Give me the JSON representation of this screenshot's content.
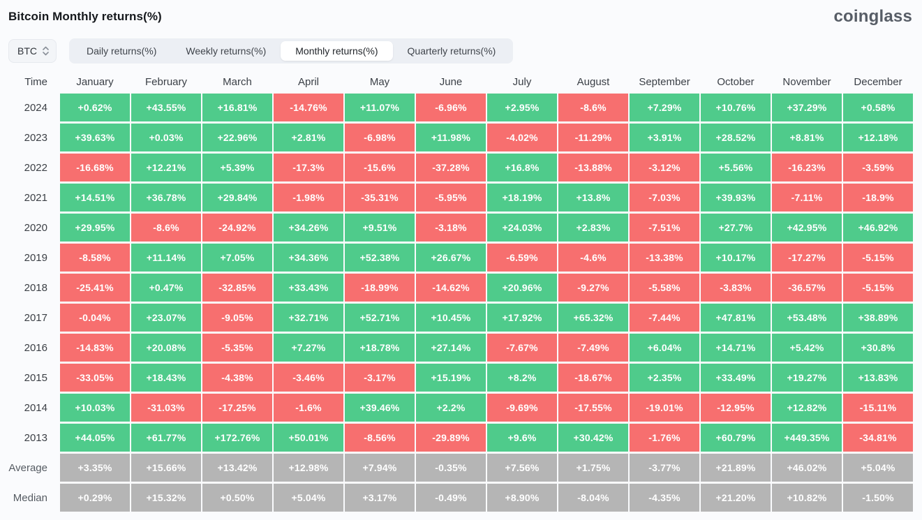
{
  "header": {
    "title": "Bitcoin Monthly returns(%)",
    "logo": "coinglass"
  },
  "controls": {
    "coin": "BTC",
    "tabs": [
      {
        "label": "Daily returns(%)",
        "active": false
      },
      {
        "label": "Weekly returns(%)",
        "active": false
      },
      {
        "label": "Monthly returns(%)",
        "active": true
      },
      {
        "label": "Quarterly returns(%)",
        "active": false
      }
    ]
  },
  "colors": {
    "positive": "#4FCB8B",
    "negative": "#F76F6F",
    "summary": "#B5B5B5"
  },
  "chart_data": {
    "type": "table",
    "title": "Bitcoin Monthly returns(%)",
    "time_header": "Time",
    "columns": [
      "January",
      "February",
      "March",
      "April",
      "May",
      "June",
      "July",
      "August",
      "September",
      "October",
      "November",
      "December"
    ],
    "rows": [
      {
        "label": "2024",
        "kind": "year",
        "values": [
          "+0.62%",
          "+43.55%",
          "+16.81%",
          "-14.76%",
          "+11.07%",
          "-6.96%",
          "+2.95%",
          "-8.6%",
          "+7.29%",
          "+10.76%",
          "+37.29%",
          "+0.58%"
        ]
      },
      {
        "label": "2023",
        "kind": "year",
        "values": [
          "+39.63%",
          "+0.03%",
          "+22.96%",
          "+2.81%",
          "-6.98%",
          "+11.98%",
          "-4.02%",
          "-11.29%",
          "+3.91%",
          "+28.52%",
          "+8.81%",
          "+12.18%"
        ]
      },
      {
        "label": "2022",
        "kind": "year",
        "values": [
          "-16.68%",
          "+12.21%",
          "+5.39%",
          "-17.3%",
          "-15.6%",
          "-37.28%",
          "+16.8%",
          "-13.88%",
          "-3.12%",
          "+5.56%",
          "-16.23%",
          "-3.59%"
        ]
      },
      {
        "label": "2021",
        "kind": "year",
        "values": [
          "+14.51%",
          "+36.78%",
          "+29.84%",
          "-1.98%",
          "-35.31%",
          "-5.95%",
          "+18.19%",
          "+13.8%",
          "-7.03%",
          "+39.93%",
          "-7.11%",
          "-18.9%"
        ]
      },
      {
        "label": "2020",
        "kind": "year",
        "values": [
          "+29.95%",
          "-8.6%",
          "-24.92%",
          "+34.26%",
          "+9.51%",
          "-3.18%",
          "+24.03%",
          "+2.83%",
          "-7.51%",
          "+27.7%",
          "+42.95%",
          "+46.92%"
        ]
      },
      {
        "label": "2019",
        "kind": "year",
        "values": [
          "-8.58%",
          "+11.14%",
          "+7.05%",
          "+34.36%",
          "+52.38%",
          "+26.67%",
          "-6.59%",
          "-4.6%",
          "-13.38%",
          "+10.17%",
          "-17.27%",
          "-5.15%"
        ]
      },
      {
        "label": "2018",
        "kind": "year",
        "values": [
          "-25.41%",
          "+0.47%",
          "-32.85%",
          "+33.43%",
          "-18.99%",
          "-14.62%",
          "+20.96%",
          "-9.27%",
          "-5.58%",
          "-3.83%",
          "-36.57%",
          "-5.15%"
        ]
      },
      {
        "label": "2017",
        "kind": "year",
        "values": [
          "-0.04%",
          "+23.07%",
          "-9.05%",
          "+32.71%",
          "+52.71%",
          "+10.45%",
          "+17.92%",
          "+65.32%",
          "-7.44%",
          "+47.81%",
          "+53.48%",
          "+38.89%"
        ]
      },
      {
        "label": "2016",
        "kind": "year",
        "values": [
          "-14.83%",
          "+20.08%",
          "-5.35%",
          "+7.27%",
          "+18.78%",
          "+27.14%",
          "-7.67%",
          "-7.49%",
          "+6.04%",
          "+14.71%",
          "+5.42%",
          "+30.8%"
        ]
      },
      {
        "label": "2015",
        "kind": "year",
        "values": [
          "-33.05%",
          "+18.43%",
          "-4.38%",
          "-3.46%",
          "-3.17%",
          "+15.19%",
          "+8.2%",
          "-18.67%",
          "+2.35%",
          "+33.49%",
          "+19.27%",
          "+13.83%"
        ]
      },
      {
        "label": "2014",
        "kind": "year",
        "values": [
          "+10.03%",
          "-31.03%",
          "-17.25%",
          "-1.6%",
          "+39.46%",
          "+2.2%",
          "-9.69%",
          "-17.55%",
          "-19.01%",
          "-12.95%",
          "+12.82%",
          "-15.11%"
        ]
      },
      {
        "label": "2013",
        "kind": "year",
        "values": [
          "+44.05%",
          "+61.77%",
          "+172.76%",
          "+50.01%",
          "-8.56%",
          "-29.89%",
          "+9.6%",
          "+30.42%",
          "-1.76%",
          "+60.79%",
          "+449.35%",
          "-34.81%"
        ]
      },
      {
        "label": "Average",
        "kind": "summary",
        "values": [
          "+3.35%",
          "+15.66%",
          "+13.42%",
          "+12.98%",
          "+7.94%",
          "-0.35%",
          "+7.56%",
          "+1.75%",
          "-3.77%",
          "+21.89%",
          "+46.02%",
          "+5.04%"
        ]
      },
      {
        "label": "Median",
        "kind": "summary",
        "values": [
          "+0.29%",
          "+15.32%",
          "+0.50%",
          "+5.04%",
          "+3.17%",
          "-0.49%",
          "+8.90%",
          "-8.04%",
          "-4.35%",
          "+21.20%",
          "+10.82%",
          "-1.50%"
        ]
      }
    ]
  }
}
